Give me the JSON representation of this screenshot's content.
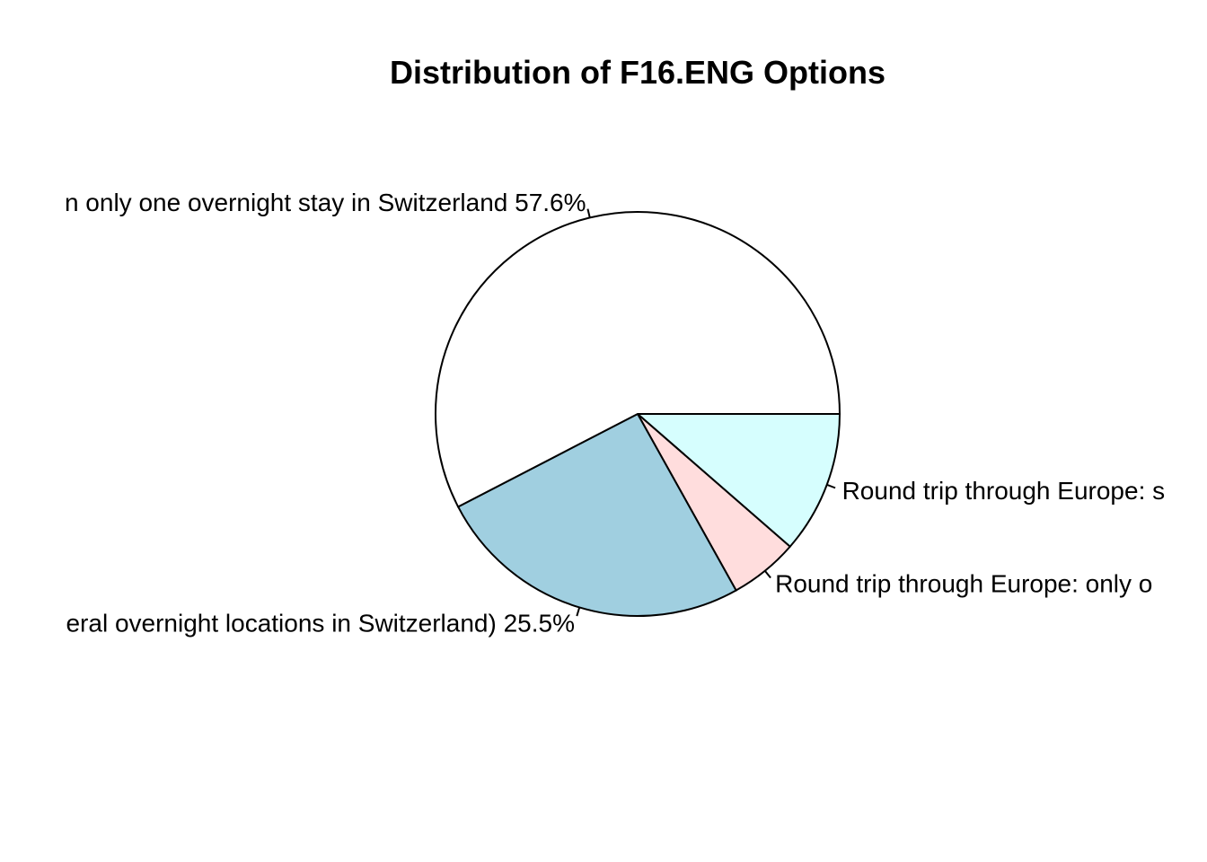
{
  "chart_data": {
    "type": "pie",
    "title": "Distribution of F16.ENG Options",
    "slices": [
      {
        "label": "Round trip through Europe: s",
        "value": 11.4,
        "color": "#D6FEFE"
      },
      {
        "label": "Round trip through Europe: only o",
        "value": 5.5,
        "color": "#FFDDDD"
      },
      {
        "label": "eral overnight locations in Switzerland) 25.5%",
        "value": 25.5,
        "color": "#A0CFE0"
      },
      {
        "label": "n only one overnight stay in Switzerland 57.6%",
        "value": 57.6,
        "color": "#FFFFFF"
      }
    ],
    "start_angle_deg": 0,
    "direction": "clockwise"
  }
}
